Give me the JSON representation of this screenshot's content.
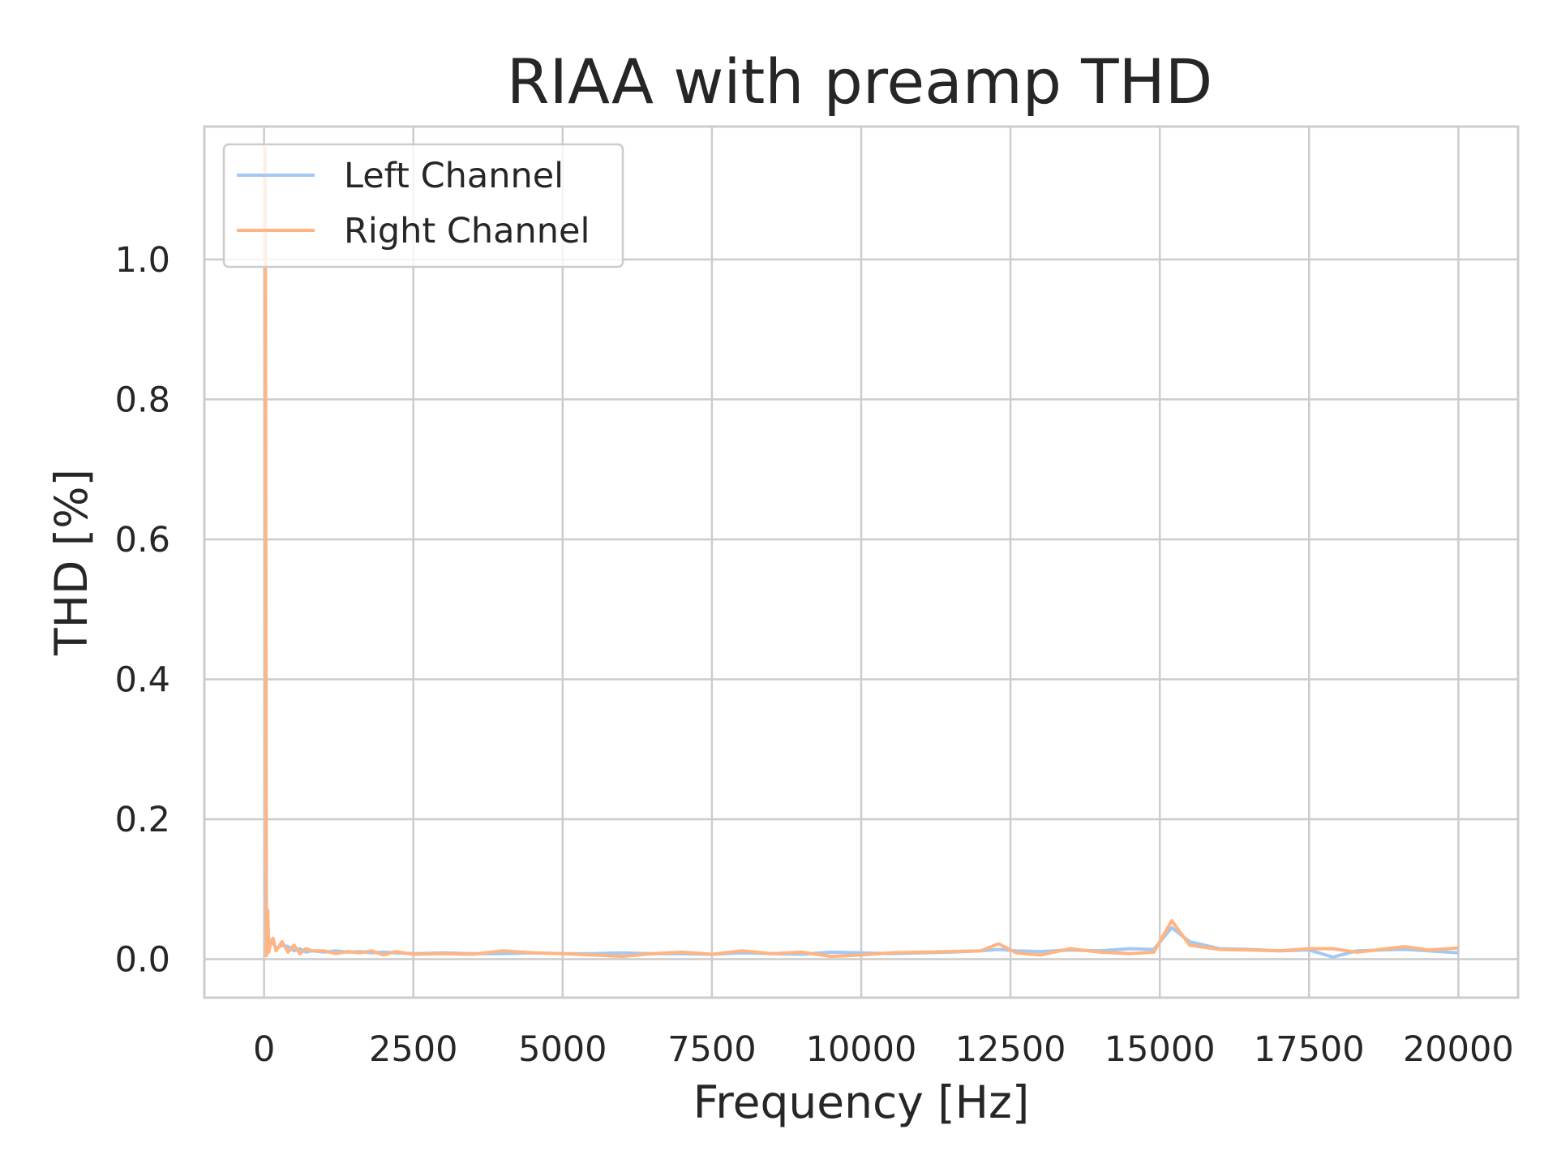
{
  "chart_data": {
    "type": "line",
    "title": "RIAA with preamp THD",
    "xlabel": "Frequency [Hz]",
    "ylabel": "THD [%]",
    "xlim": [
      -1000,
      21000
    ],
    "ylim": [
      -0.055,
      1.19
    ],
    "xticks": [
      0,
      2500,
      5000,
      7500,
      10000,
      12500,
      15000,
      17500,
      20000
    ],
    "xtick_labels": [
      "0",
      "2500",
      "5000",
      "7500",
      "10000",
      "12500",
      "15000",
      "17500",
      "20000"
    ],
    "yticks": [
      0.0,
      0.2,
      0.4,
      0.6,
      0.8,
      1.0
    ],
    "ytick_labels": [
      "0.0",
      "0.2",
      "0.4",
      "0.6",
      "0.8",
      "1.0"
    ],
    "grid": true,
    "legend_position": "upper-left",
    "series": [
      {
        "name": "Left Channel",
        "color": "#a1c9f4",
        "x": [
          20,
          40,
          60,
          80,
          100,
          150,
          200,
          300,
          400,
          500,
          600,
          700,
          800,
          1000,
          1200,
          1400,
          1600,
          1800,
          2000,
          2200,
          2500,
          3000,
          3500,
          4000,
          4500,
          5000,
          5500,
          6000,
          6500,
          7000,
          7500,
          8000,
          8500,
          9000,
          9500,
          10000,
          10500,
          11000,
          11500,
          12000,
          12300,
          12600,
          13000,
          13500,
          14000,
          14500,
          14900,
          15200,
          15500,
          16000,
          16500,
          17000,
          17500,
          17900,
          18300,
          18700,
          19100,
          19500,
          20000
        ],
        "y": [
          0.12,
          0.04,
          0.02,
          0.03,
          0.02,
          0.025,
          0.015,
          0.02,
          0.018,
          0.012,
          0.015,
          0.01,
          0.012,
          0.01,
          0.012,
          0.01,
          0.011,
          0.009,
          0.01,
          0.009,
          0.008,
          0.009,
          0.008,
          0.008,
          0.009,
          0.008,
          0.008,
          0.009,
          0.008,
          0.008,
          0.007,
          0.009,
          0.008,
          0.007,
          0.01,
          0.009,
          0.008,
          0.009,
          0.01,
          0.012,
          0.014,
          0.012,
          0.011,
          0.013,
          0.012,
          0.015,
          0.014,
          0.045,
          0.025,
          0.015,
          0.014,
          0.012,
          0.013,
          0.003,
          0.012,
          0.013,
          0.014,
          0.012,
          0.009
        ]
      },
      {
        "name": "Right Channel",
        "color": "#ffb482",
        "x": [
          20,
          40,
          60,
          80,
          100,
          150,
          200,
          300,
          400,
          500,
          600,
          700,
          800,
          1000,
          1200,
          1400,
          1600,
          1800,
          2000,
          2200,
          2500,
          3000,
          3500,
          4000,
          4500,
          5000,
          5500,
          6000,
          6500,
          7000,
          7500,
          8000,
          8500,
          9000,
          9500,
          10000,
          10500,
          11000,
          11500,
          12000,
          12300,
          12600,
          13000,
          13500,
          14000,
          14500,
          14900,
          15200,
          15500,
          16000,
          16500,
          17000,
          17500,
          17900,
          18300,
          18700,
          19100,
          19500,
          20000
        ],
        "y": [
          1.16,
          0.005,
          0.07,
          0.01,
          0.02,
          0.03,
          0.012,
          0.025,
          0.01,
          0.02,
          0.008,
          0.015,
          0.012,
          0.012,
          0.008,
          0.011,
          0.009,
          0.012,
          0.006,
          0.011,
          0.007,
          0.008,
          0.007,
          0.012,
          0.009,
          0.008,
          0.006,
          0.004,
          0.008,
          0.01,
          0.007,
          0.012,
          0.008,
          0.01,
          0.004,
          0.006,
          0.009,
          0.01,
          0.011,
          0.012,
          0.022,
          0.009,
          0.006,
          0.015,
          0.01,
          0.008,
          0.01,
          0.055,
          0.02,
          0.014,
          0.013,
          0.012,
          0.015,
          0.015,
          0.01,
          0.014,
          0.018,
          0.013,
          0.016
        ]
      }
    ]
  }
}
